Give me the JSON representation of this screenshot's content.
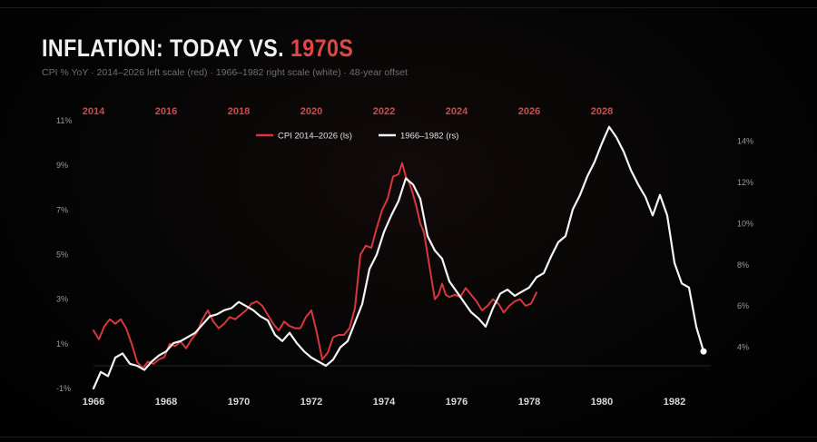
{
  "header": {
    "title_main": "INFLATION: TODAY VS. ",
    "title_accent": "1970S",
    "subtitle": "CPI % YoY · 2014–2026 left scale (red) · 1966–1982 right scale (white) · 48-year offset"
  },
  "colors": {
    "red": "#d9363e",
    "white": "#f5f5f5",
    "grid": "#2a2a2a"
  },
  "chart_data": {
    "type": "line",
    "legend_position": "top-center",
    "grid": false,
    "left_axis": {
      "ylim": [
        -1,
        11
      ],
      "ticks": [
        "-1%",
        "1%",
        "3%",
        "5%",
        "7%",
        "9%",
        "11%"
      ],
      "tick_values": [
        -1,
        1,
        3,
        5,
        7,
        9,
        11
      ]
    },
    "right_axis": {
      "ylim": [
        2.0,
        15.0
      ],
      "ticks": [
        "4%",
        "6%",
        "8%",
        "10%",
        "12%",
        "14%"
      ],
      "tick_values": [
        4,
        6,
        8,
        10,
        12,
        14
      ]
    },
    "bottom_axis": {
      "xlim": [
        1966,
        1983
      ],
      "ticks": [
        "1966",
        "1968",
        "1970",
        "1972",
        "1974",
        "1976",
        "1978",
        "1980",
        "1982"
      ],
      "tick_values": [
        1966,
        1968,
        1970,
        1972,
        1974,
        1976,
        1978,
        1980,
        1982
      ]
    },
    "top_axis": {
      "xlim": [
        2014,
        2031
      ],
      "ticks": [
        "2014",
        "2016",
        "2018",
        "2020",
        "2022",
        "2024",
        "2026",
        "2028"
      ],
      "tick_values": [
        2014,
        2016,
        2018,
        2020,
        2022,
        2024,
        2026,
        2028
      ]
    },
    "series": [
      {
        "name": "CPI 2014–2026 (ls)",
        "axis": "left",
        "color": "#d9363e",
        "x": [
          2014.0,
          2014.15,
          2014.3,
          2014.45,
          2014.6,
          2014.75,
          2014.9,
          2015.05,
          2015.2,
          2015.35,
          2015.5,
          2015.65,
          2015.8,
          2015.95,
          2016.1,
          2016.25,
          2016.4,
          2016.55,
          2016.7,
          2016.85,
          2017.0,
          2017.15,
          2017.3,
          2017.45,
          2017.6,
          2017.75,
          2017.9,
          2018.05,
          2018.2,
          2018.35,
          2018.5,
          2018.65,
          2018.8,
          2018.95,
          2019.1,
          2019.25,
          2019.4,
          2019.55,
          2019.7,
          2019.85,
          2020.0,
          2020.15,
          2020.3,
          2020.45,
          2020.6,
          2020.75,
          2020.9,
          2021.05,
          2021.2,
          2021.35,
          2021.5,
          2021.65,
          2021.8,
          2021.95,
          2022.1,
          2022.25,
          2022.4,
          2022.5,
          2022.6,
          2022.7,
          2022.8,
          2022.9,
          2023.0,
          2023.1,
          2023.2,
          2023.3,
          2023.4,
          2023.5,
          2023.6,
          2023.7,
          2023.8,
          2023.95,
          2024.1,
          2024.25,
          2024.4,
          2024.55,
          2024.7,
          2024.85,
          2025.0,
          2025.15,
          2025.3,
          2025.45,
          2025.6,
          2025.75,
          2025.9,
          2026.05,
          2026.2
        ],
        "values": [
          1.6,
          1.2,
          1.8,
          2.1,
          1.9,
          2.1,
          1.7,
          1.0,
          0.2,
          -0.1,
          0.2,
          0.1,
          0.3,
          0.4,
          1.0,
          0.9,
          1.1,
          0.8,
          1.2,
          1.5,
          2.1,
          2.5,
          2.0,
          1.7,
          1.9,
          2.2,
          2.1,
          2.3,
          2.5,
          2.8,
          2.9,
          2.7,
          2.3,
          1.9,
          1.6,
          2.0,
          1.8,
          1.7,
          1.7,
          2.2,
          2.5,
          1.5,
          0.3,
          0.6,
          1.3,
          1.4,
          1.4,
          1.7,
          2.6,
          5.0,
          5.4,
          5.3,
          6.2,
          7.0,
          7.5,
          8.5,
          8.6,
          9.1,
          8.5,
          8.2,
          7.7,
          7.1,
          6.4,
          6.0,
          5.0,
          4.0,
          3.0,
          3.2,
          3.7,
          3.2,
          3.1,
          3.2,
          3.1,
          3.5,
          3.2,
          2.9,
          2.5,
          2.7,
          3.0,
          2.8,
          2.4,
          2.7,
          2.9,
          3.0,
          2.7,
          2.8,
          3.3
        ]
      },
      {
        "name": "1966–1982 (rs)",
        "axis": "right",
        "color": "#f5f5f5",
        "x": [
          1966.0,
          1966.2,
          1966.4,
          1966.6,
          1966.8,
          1967.0,
          1967.2,
          1967.4,
          1967.6,
          1967.8,
          1968.0,
          1968.2,
          1968.4,
          1968.6,
          1968.8,
          1969.0,
          1969.2,
          1969.4,
          1969.6,
          1969.8,
          1970.0,
          1970.2,
          1970.4,
          1970.6,
          1970.8,
          1971.0,
          1971.2,
          1971.4,
          1971.6,
          1971.8,
          1972.0,
          1972.2,
          1972.4,
          1972.6,
          1972.8,
          1973.0,
          1973.2,
          1973.4,
          1973.6,
          1973.8,
          1974.0,
          1974.2,
          1974.4,
          1974.6,
          1974.8,
          1975.0,
          1975.2,
          1975.4,
          1975.6,
          1975.8,
          1976.0,
          1976.2,
          1976.4,
          1976.6,
          1976.8,
          1977.0,
          1977.2,
          1977.4,
          1977.6,
          1977.8,
          1978.0,
          1978.2,
          1978.4,
          1978.6,
          1978.8,
          1979.0,
          1979.2,
          1979.4,
          1979.6,
          1979.8,
          1980.0,
          1980.2,
          1980.4,
          1980.6,
          1980.8,
          1981.0,
          1981.2,
          1981.4,
          1981.6,
          1981.8,
          1982.0,
          1982.2,
          1982.4,
          1982.6,
          1982.8
        ],
        "values": [
          2.0,
          2.8,
          2.6,
          3.5,
          3.7,
          3.2,
          3.1,
          2.9,
          3.3,
          3.6,
          3.8,
          4.2,
          4.3,
          4.5,
          4.7,
          5.1,
          5.5,
          5.6,
          5.8,
          5.9,
          6.2,
          6.0,
          5.8,
          5.5,
          5.3,
          4.6,
          4.3,
          4.7,
          4.2,
          3.8,
          3.5,
          3.3,
          3.1,
          3.4,
          4.0,
          4.3,
          5.2,
          6.1,
          7.8,
          8.5,
          9.6,
          10.4,
          11.1,
          12.2,
          11.9,
          11.2,
          9.4,
          8.7,
          8.3,
          7.2,
          6.7,
          6.2,
          5.7,
          5.4,
          5.0,
          5.9,
          6.6,
          6.8,
          6.5,
          6.7,
          6.9,
          7.4,
          7.6,
          8.4,
          9.1,
          9.4,
          10.7,
          11.4,
          12.3,
          13.0,
          13.9,
          14.7,
          14.2,
          13.5,
          12.6,
          11.9,
          11.3,
          10.4,
          11.4,
          10.4,
          8.1,
          7.1,
          6.9,
          5.0,
          3.8
        ]
      }
    ]
  }
}
